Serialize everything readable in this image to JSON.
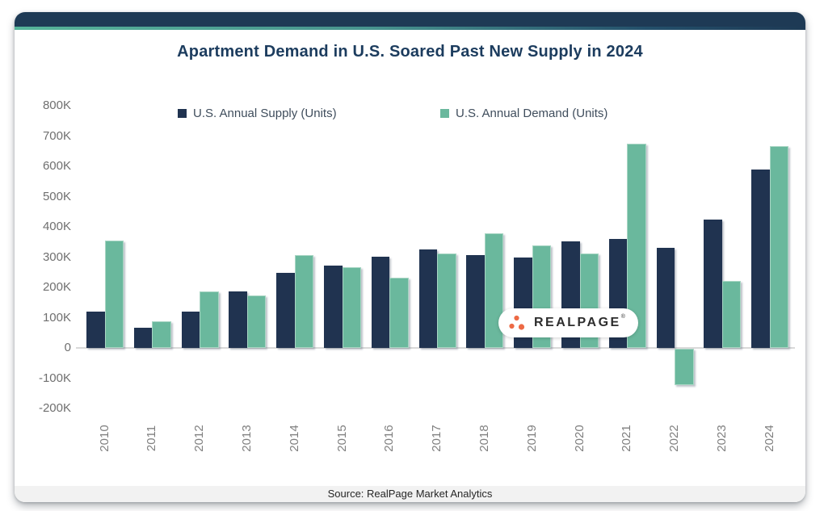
{
  "header": {
    "title": "Apartment Demand in U.S. Soared Past New Supply in 2024"
  },
  "colors": {
    "supply_bar": "#203350",
    "demand_bar": "#6ab89d",
    "header_bar": "#1e3a55",
    "accent_teal": "#56b49a",
    "title_text": "#1c3c5e",
    "axis_text": "#6f6f6f",
    "zero_line": "#d9d9d9",
    "logo_dot_orange": "#ed6a45",
    "footer_bg": "#f2f2f2"
  },
  "legend": {
    "items": [
      {
        "label": "U.S. Annual Supply (Units)",
        "color": "#203350"
      },
      {
        "label": "U.S. Annual Demand (Units)",
        "color": "#6ab89d"
      }
    ]
  },
  "watermark": {
    "text": "REALPAGE",
    "mark": "®"
  },
  "footer": {
    "source": "Source: RealPage Market Analytics"
  },
  "chart_data": {
    "type": "bar",
    "title": "Apartment Demand in U.S. Soared Past New Supply in 2024",
    "xlabel": "",
    "ylabel": "",
    "ylim": [
      -200000,
      800000
    ],
    "grid": false,
    "legend_position": "top",
    "categories": [
      "2010",
      "2011",
      "2012",
      "2013",
      "2014",
      "2015",
      "2016",
      "2017",
      "2018",
      "2019",
      "2020",
      "2021",
      "2022",
      "2023",
      "2024"
    ],
    "series": [
      {
        "name": "U.S. Annual Supply (Units)",
        "color": "#203350",
        "values": [
          119000,
          66000,
          119000,
          187000,
          247000,
          272000,
          302000,
          326000,
          306000,
          298000,
          353000,
          359000,
          330000,
          425000,
          589000
        ]
      },
      {
        "name": "U.S. Annual Demand (Units)",
        "color": "#6ab89d",
        "values": [
          356000,
          88000,
          186000,
          174000,
          307000,
          266000,
          231000,
          312000,
          380000,
          340000,
          311000,
          676000,
          -121000,
          222000,
          668000
        ]
      }
    ],
    "y_ticks": [
      {
        "label": "800K",
        "value": 800000
      },
      {
        "label": "700K",
        "value": 700000
      },
      {
        "label": "600K",
        "value": 600000
      },
      {
        "label": "500K",
        "value": 500000
      },
      {
        "label": "400K",
        "value": 400000
      },
      {
        "label": "300K",
        "value": 300000
      },
      {
        "label": "200K",
        "value": 200000
      },
      {
        "label": "100K",
        "value": 100000
      },
      {
        "label": "0",
        "value": 0
      },
      {
        "label": "-100K",
        "value": -100000
      },
      {
        "label": "-200K",
        "value": -200000
      }
    ]
  }
}
